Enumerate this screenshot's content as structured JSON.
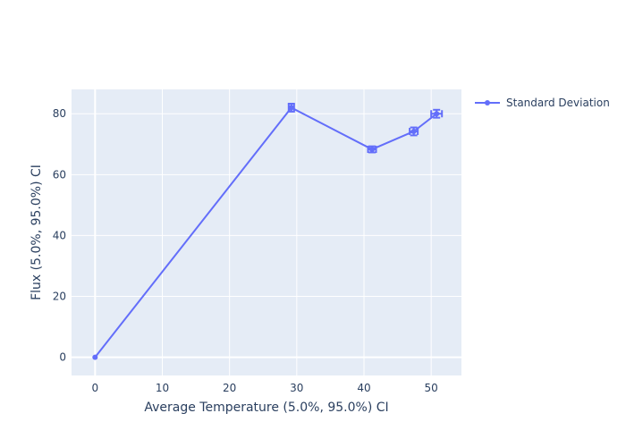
{
  "chart_data": {
    "type": "line",
    "xlabel": "Average Temperature (5.0%, 95.0%) CI",
    "ylabel": "Flux (5.0%, 95.0%) CI",
    "xlim": [
      -3.5,
      54.5
    ],
    "ylim": [
      -6,
      88
    ],
    "x_ticks": [
      0,
      10,
      20,
      30,
      40,
      50
    ],
    "y_ticks": [
      0,
      20,
      40,
      60,
      80
    ],
    "grid": true,
    "legend_position": "top-right",
    "series": [
      {
        "name": "Standard Deviation",
        "color": "#636efa",
        "points": [
          {
            "x": 0,
            "y": 0,
            "x_err": 0,
            "y_err": 0
          },
          {
            "x": 29.2,
            "y": 82.0,
            "x_err": 0.4,
            "y_err": 1.3
          },
          {
            "x": 41.2,
            "y": 68.3,
            "x_err": 0.6,
            "y_err": 1.0
          },
          {
            "x": 47.4,
            "y": 74.2,
            "x_err": 0.6,
            "y_err": 1.3
          },
          {
            "x": 50.8,
            "y": 80.0,
            "x_err": 0.8,
            "y_err": 1.3
          }
        ]
      }
    ]
  }
}
